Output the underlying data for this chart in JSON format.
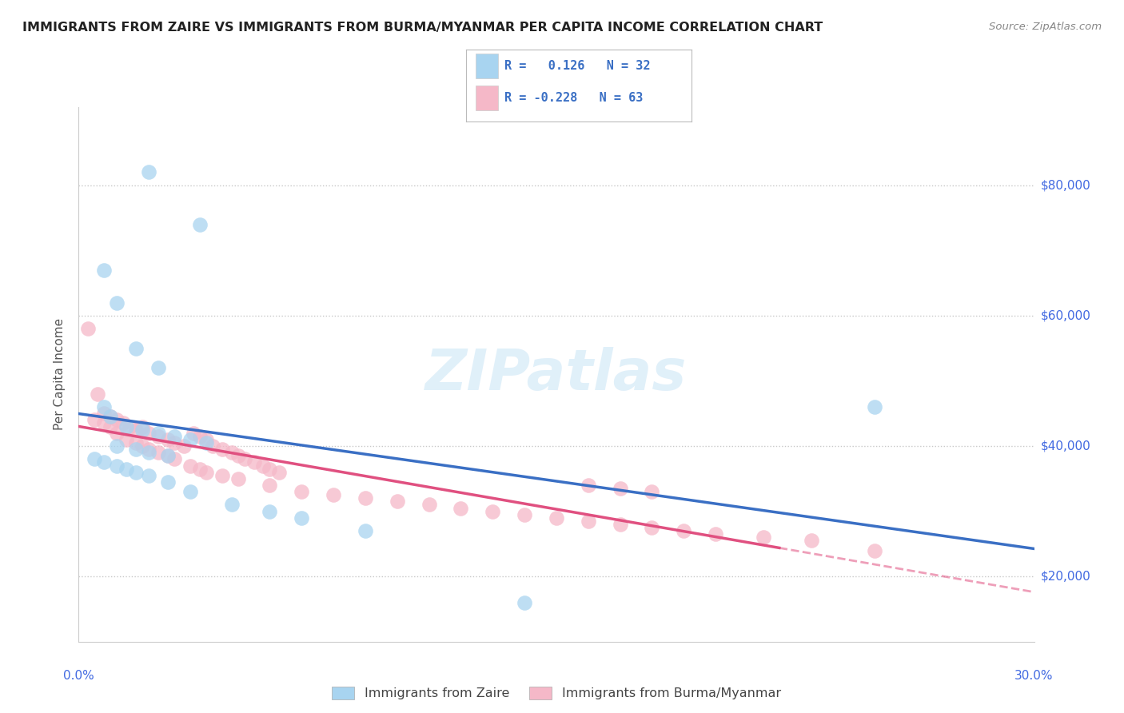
{
  "title": "IMMIGRANTS FROM ZAIRE VS IMMIGRANTS FROM BURMA/MYANMAR PER CAPITA INCOME CORRELATION CHART",
  "source": "Source: ZipAtlas.com",
  "ylabel": "Per Capita Income",
  "y_ticks": [
    20000,
    40000,
    60000,
    80000
  ],
  "y_tick_labels": [
    "$20,000",
    "$40,000",
    "$60,000",
    "$80,000"
  ],
  "xlim": [
    0.0,
    0.3
  ],
  "ylim": [
    10000,
    92000
  ],
  "legend_zaire_r": " 0.126",
  "legend_zaire_n": "32",
  "legend_burma_r": "-0.228",
  "legend_burma_n": "63",
  "legend_label_zaire": "Immigrants from Zaire",
  "legend_label_burma": "Immigrants from Burma/Myanmar",
  "watermark": "ZIPatlas",
  "color_zaire": "#a8d4f0",
  "color_burma": "#f5b8c8",
  "line_color_zaire": "#3a6fc4",
  "line_color_burma": "#e05080",
  "background_color": "#FFFFFF",
  "zaire_x": [
    0.022,
    0.038,
    0.008,
    0.012,
    0.018,
    0.025,
    0.008,
    0.01,
    0.015,
    0.02,
    0.025,
    0.03,
    0.035,
    0.04,
    0.012,
    0.018,
    0.022,
    0.028,
    0.005,
    0.008,
    0.012,
    0.015,
    0.018,
    0.022,
    0.028,
    0.035,
    0.048,
    0.06,
    0.25,
    0.07,
    0.09,
    0.14
  ],
  "zaire_y": [
    82000,
    74000,
    67000,
    62000,
    55000,
    52000,
    46000,
    44500,
    43000,
    42500,
    42000,
    41500,
    41000,
    40500,
    40000,
    39500,
    39000,
    38500,
    38000,
    37500,
    37000,
    36500,
    36000,
    35500,
    34500,
    33000,
    31000,
    30000,
    46000,
    29000,
    27000,
    16000
  ],
  "burma_x": [
    0.003,
    0.006,
    0.008,
    0.01,
    0.012,
    0.014,
    0.016,
    0.018,
    0.02,
    0.022,
    0.025,
    0.028,
    0.03,
    0.033,
    0.036,
    0.038,
    0.04,
    0.042,
    0.045,
    0.048,
    0.05,
    0.052,
    0.055,
    0.058,
    0.06,
    0.063,
    0.005,
    0.008,
    0.01,
    0.012,
    0.015,
    0.018,
    0.02,
    0.022,
    0.025,
    0.028,
    0.03,
    0.035,
    0.038,
    0.04,
    0.045,
    0.05,
    0.06,
    0.07,
    0.08,
    0.09,
    0.1,
    0.11,
    0.12,
    0.13,
    0.14,
    0.15,
    0.16,
    0.17,
    0.18,
    0.19,
    0.2,
    0.215,
    0.23,
    0.25,
    0.16,
    0.17,
    0.18
  ],
  "burma_y": [
    58000,
    48000,
    45000,
    44500,
    44000,
    43500,
    43000,
    42500,
    43000,
    42000,
    41500,
    41000,
    40500,
    40000,
    42000,
    41500,
    41000,
    40000,
    39500,
    39000,
    38500,
    38000,
    37500,
    37000,
    36500,
    36000,
    44000,
    43500,
    43000,
    42000,
    41000,
    40500,
    40000,
    39500,
    39000,
    38500,
    38000,
    37000,
    36500,
    36000,
    35500,
    35000,
    34000,
    33000,
    32500,
    32000,
    31500,
    31000,
    30500,
    30000,
    29500,
    29000,
    28500,
    28000,
    27500,
    27000,
    26500,
    26000,
    25500,
    24000,
    34000,
    33500,
    33000
  ]
}
